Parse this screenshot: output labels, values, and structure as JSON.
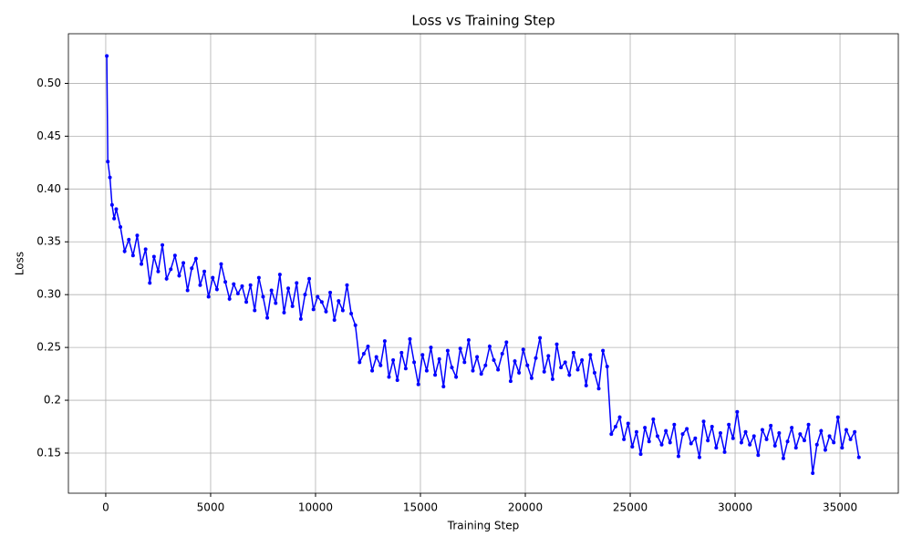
{
  "chart_data": {
    "type": "line",
    "title": "Loss vs Training Step",
    "x_label": "Training Step",
    "y_label": "Loss",
    "grid": true,
    "xlim": [
      -1780,
      37780
    ],
    "ylim": [
      0.112,
      0.547
    ],
    "xticks": [
      0,
      5000,
      10000,
      15000,
      20000,
      25000,
      30000,
      35000
    ],
    "yticks": [
      0.15,
      0.2,
      {
        "value": 0.25,
        "label": "0.25"
      },
      {
        "value": 0.3,
        "label": "0.30"
      },
      0.35,
      {
        "value": 0.4,
        "label": "0.40"
      },
      0.45,
      {
        "value": 0.5,
        "label": "0.50"
      }
    ],
    "x": [
      50,
      100,
      200,
      300,
      400,
      500,
      700,
      900,
      1100,
      1300,
      1500,
      1700,
      1900,
      2100,
      2300,
      2500,
      2700,
      2900,
      3100,
      3300,
      3500,
      3700,
      3900,
      4100,
      4300,
      4500,
      4700,
      4900,
      5100,
      5300,
      5500,
      5700,
      5900,
      6100,
      6300,
      6500,
      6700,
      6900,
      7100,
      7300,
      7500,
      7700,
      7900,
      8100,
      8300,
      8500,
      8700,
      8900,
      9100,
      9300,
      9500,
      9700,
      9900,
      10100,
      10300,
      10500,
      10700,
      10900,
      11100,
      11300,
      11500,
      11700,
      11900,
      12100,
      12300,
      12500,
      12700,
      12900,
      13100,
      13300,
      13500,
      13700,
      13900,
      14100,
      14300,
      14500,
      14700,
      14900,
      15100,
      15300,
      15500,
      15700,
      15900,
      16100,
      16300,
      16500,
      16700,
      16900,
      17100,
      17300,
      17500,
      17700,
      17900,
      18100,
      18300,
      18500,
      18700,
      18900,
      19100,
      19300,
      19500,
      19700,
      19900,
      20100,
      20300,
      20500,
      20700,
      20900,
      21100,
      21300,
      21500,
      21700,
      21900,
      22100,
      22300,
      22500,
      22700,
      22900,
      23100,
      23300,
      23500,
      23700,
      23900,
      24100,
      24300,
      24500,
      24700,
      24900,
      25100,
      25300,
      25500,
      25700,
      25900,
      26100,
      26300,
      26500,
      26700,
      26900,
      27100,
      27300,
      27500,
      27700,
      27900,
      28100,
      28300,
      28500,
      28700,
      28900,
      29100,
      29300,
      29500,
      29700,
      29900,
      30100,
      30300,
      30500,
      30700,
      30900,
      31100,
      31300,
      31500,
      31700,
      31900,
      32100,
      32300,
      32500,
      32700,
      32900,
      33100,
      33300,
      33500,
      33700,
      33900,
      34100,
      34300,
      34500,
      34700,
      34900,
      35100,
      35300,
      35500,
      35700,
      35900
    ],
    "series": [
      {
        "name": "Loss",
        "color": "#0000ff",
        "values": [
          0.526,
          0.426,
          0.411,
          0.385,
          0.372,
          0.381,
          0.364,
          0.341,
          0.352,
          0.337,
          0.356,
          0.329,
          0.343,
          0.311,
          0.336,
          0.322,
          0.347,
          0.315,
          0.324,
          0.337,
          0.318,
          0.33,
          0.304,
          0.325,
          0.334,
          0.309,
          0.322,
          0.298,
          0.316,
          0.305,
          0.329,
          0.312,
          0.296,
          0.31,
          0.301,
          0.308,
          0.293,
          0.309,
          0.285,
          0.316,
          0.298,
          0.278,
          0.304,
          0.292,
          0.319,
          0.283,
          0.306,
          0.289,
          0.311,
          0.277,
          0.3,
          0.315,
          0.286,
          0.298,
          0.293,
          0.284,
          0.302,
          0.276,
          0.294,
          0.285,
          0.309,
          0.282,
          0.271,
          0.236,
          0.244,
          0.251,
          0.228,
          0.241,
          0.233,
          0.256,
          0.222,
          0.238,
          0.219,
          0.245,
          0.23,
          0.258,
          0.236,
          0.215,
          0.243,
          0.228,
          0.25,
          0.224,
          0.239,
          0.213,
          0.247,
          0.231,
          0.222,
          0.249,
          0.236,
          0.257,
          0.228,
          0.241,
          0.225,
          0.233,
          0.251,
          0.238,
          0.229,
          0.244,
          0.255,
          0.218,
          0.237,
          0.226,
          0.248,
          0.233,
          0.221,
          0.24,
          0.259,
          0.227,
          0.242,
          0.22,
          0.253,
          0.231,
          0.236,
          0.224,
          0.245,
          0.229,
          0.238,
          0.214,
          0.243,
          0.226,
          0.211,
          0.247,
          0.232,
          0.168,
          0.175,
          0.184,
          0.163,
          0.178,
          0.156,
          0.17,
          0.149,
          0.174,
          0.161,
          0.182,
          0.166,
          0.158,
          0.171,
          0.16,
          0.177,
          0.147,
          0.168,
          0.173,
          0.159,
          0.164,
          0.146,
          0.18,
          0.162,
          0.175,
          0.155,
          0.169,
          0.151,
          0.177,
          0.164,
          0.189,
          0.16,
          0.17,
          0.158,
          0.166,
          0.148,
          0.172,
          0.163,
          0.176,
          0.157,
          0.169,
          0.145,
          0.161,
          0.174,
          0.155,
          0.168,
          0.162,
          0.177,
          0.131,
          0.158,
          0.171,
          0.153,
          0.166,
          0.16,
          0.184,
          0.155,
          0.172,
          0.163,
          0.17,
          0.146
        ]
      }
    ]
  }
}
